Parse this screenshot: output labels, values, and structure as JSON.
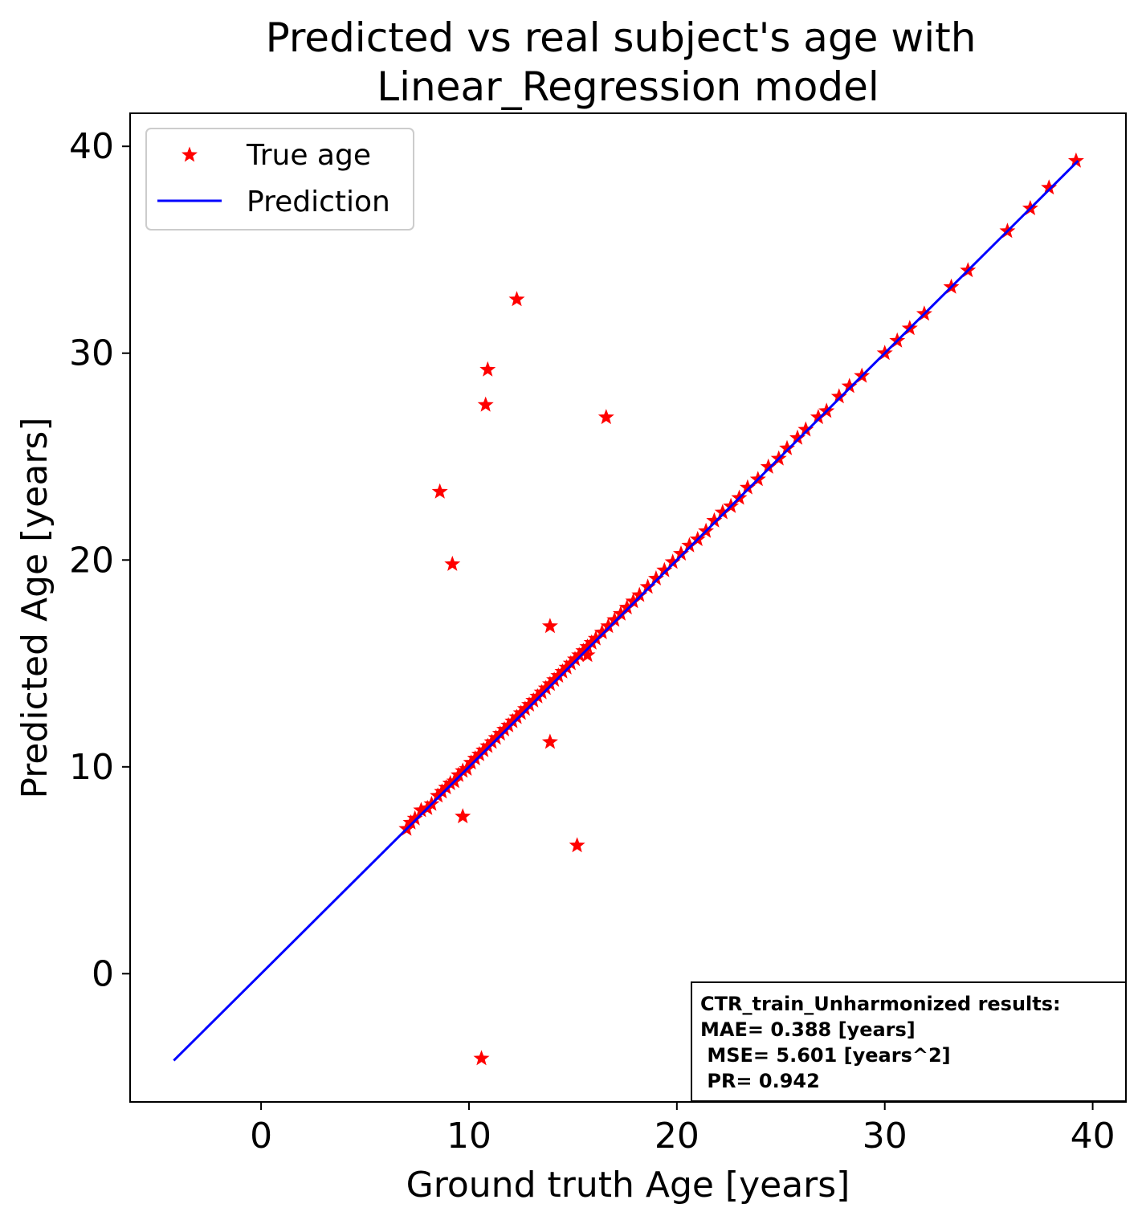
{
  "chart_data": {
    "type": "scatter",
    "title": [
      "Predicted vs real subject's age with",
      "Linear_Regression model"
    ],
    "xlabel": "Ground truth Age [years]",
    "ylabel": "Predicted Age [years]",
    "xlim": [
      -6.3,
      41.6
    ],
    "ylim": [
      -6.2,
      41.6
    ],
    "xticks": [
      0,
      10,
      20,
      30,
      40
    ],
    "yticks": [
      0,
      10,
      20,
      30,
      40
    ],
    "grid": false,
    "legend": {
      "position": "top-left",
      "entries": [
        {
          "label": "True age",
          "marker": "star",
          "color": "#ff0000"
        },
        {
          "label": "Prediction",
          "marker": "line",
          "color": "#0000ff"
        }
      ]
    },
    "prediction_line": {
      "x": [
        -4.2,
        39.3
      ],
      "y": [
        -4.2,
        39.3
      ],
      "color": "#0000ff"
    },
    "scatter_color": "#ff0000",
    "series": [
      {
        "name": "True age",
        "points": [
          [
            7.0,
            7.0
          ],
          [
            7.2,
            7.3
          ],
          [
            7.4,
            7.5
          ],
          [
            7.7,
            7.9
          ],
          [
            8.0,
            8.0
          ],
          [
            8.2,
            8.2
          ],
          [
            8.5,
            8.6
          ],
          [
            8.7,
            8.8
          ],
          [
            8.9,
            9.0
          ],
          [
            9.1,
            9.2
          ],
          [
            9.3,
            9.3
          ],
          [
            9.5,
            9.6
          ],
          [
            9.7,
            9.8
          ],
          [
            9.9,
            9.9
          ],
          [
            10.1,
            10.2
          ],
          [
            10.3,
            10.4
          ],
          [
            10.5,
            10.6
          ],
          [
            10.7,
            10.8
          ],
          [
            10.9,
            11.0
          ],
          [
            11.1,
            11.2
          ],
          [
            11.3,
            11.4
          ],
          [
            11.5,
            11.6
          ],
          [
            11.7,
            11.8
          ],
          [
            11.9,
            12.0
          ],
          [
            12.1,
            12.2
          ],
          [
            12.3,
            12.4
          ],
          [
            12.5,
            12.6
          ],
          [
            12.7,
            12.8
          ],
          [
            12.9,
            13.0
          ],
          [
            13.1,
            13.2
          ],
          [
            13.3,
            13.4
          ],
          [
            13.5,
            13.6
          ],
          [
            13.7,
            13.8
          ],
          [
            13.9,
            14.0
          ],
          [
            14.1,
            14.2
          ],
          [
            14.3,
            14.4
          ],
          [
            14.5,
            14.6
          ],
          [
            14.7,
            14.8
          ],
          [
            14.9,
            15.0
          ],
          [
            15.1,
            15.2
          ],
          [
            15.3,
            15.4
          ],
          [
            15.5,
            15.6
          ],
          [
            15.7,
            15.8
          ],
          [
            15.9,
            16.0
          ],
          [
            16.1,
            16.2
          ],
          [
            16.4,
            16.5
          ],
          [
            16.7,
            16.8
          ],
          [
            17.0,
            17.1
          ],
          [
            17.3,
            17.4
          ],
          [
            17.6,
            17.7
          ],
          [
            17.9,
            18.0
          ],
          [
            18.2,
            18.3
          ],
          [
            18.6,
            18.7
          ],
          [
            19.0,
            19.1
          ],
          [
            19.4,
            19.5
          ],
          [
            19.8,
            19.9
          ],
          [
            20.2,
            20.3
          ],
          [
            20.6,
            20.7
          ],
          [
            21.0,
            21.0
          ],
          [
            21.4,
            21.4
          ],
          [
            21.8,
            21.9
          ],
          [
            22.2,
            22.3
          ],
          [
            22.6,
            22.6
          ],
          [
            23.0,
            23.0
          ],
          [
            23.4,
            23.5
          ],
          [
            23.9,
            23.9
          ],
          [
            24.4,
            24.5
          ],
          [
            24.9,
            24.9
          ],
          [
            25.3,
            25.4
          ],
          [
            25.8,
            25.9
          ],
          [
            26.2,
            26.3
          ],
          [
            26.8,
            26.9
          ],
          [
            27.2,
            27.2
          ],
          [
            27.8,
            27.9
          ],
          [
            28.3,
            28.4
          ],
          [
            28.9,
            28.9
          ],
          [
            30.0,
            30.0
          ],
          [
            30.6,
            30.6
          ],
          [
            31.2,
            31.2
          ],
          [
            31.9,
            31.9
          ],
          [
            33.2,
            33.2
          ],
          [
            34.0,
            34.0
          ],
          [
            35.9,
            35.9
          ],
          [
            37.0,
            37.0
          ],
          [
            37.9,
            38.0
          ],
          [
            39.2,
            39.3
          ],
          [
            15.7,
            15.4
          ],
          [
            12.3,
            32.6
          ],
          [
            10.9,
            29.2
          ],
          [
            10.8,
            27.5
          ],
          [
            16.6,
            26.9
          ],
          [
            8.6,
            23.3
          ],
          [
            9.2,
            19.8
          ],
          [
            13.9,
            16.8
          ],
          [
            13.9,
            11.2
          ],
          [
            9.7,
            7.6
          ],
          [
            15.2,
            6.2
          ],
          [
            10.6,
            -4.1
          ]
        ]
      }
    ],
    "annotation": {
      "lines": [
        "CTR_train_Unharmonized results:",
        "MAE= 0.388 [years]",
        " MSE= 5.601 [years^2]",
        " PR= 0.942"
      ],
      "position": "bottom-right"
    }
  }
}
